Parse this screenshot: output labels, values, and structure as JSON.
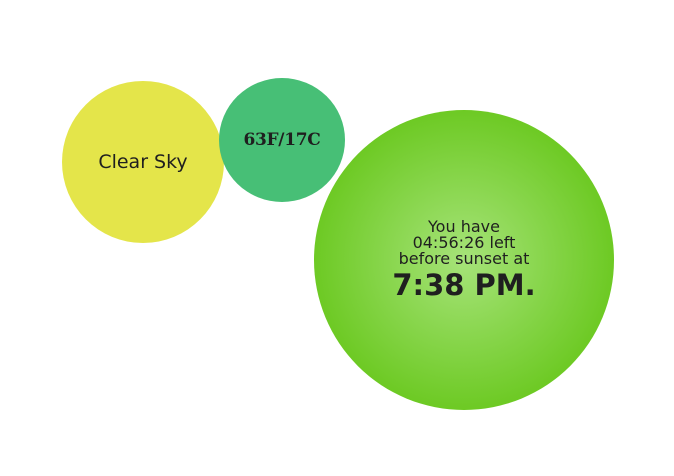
{
  "condition": {
    "text": "Clear Sky",
    "color": "#e4e54a"
  },
  "temperature": {
    "text": "63F/17C",
    "color": "#47bf76"
  },
  "sunset": {
    "line1": "You have",
    "countdown": "04:56:26 left",
    "line3": "before sunset at",
    "time": "7:38 PM.",
    "color_center": "#a6e379",
    "color_edge": "#6cc922"
  }
}
